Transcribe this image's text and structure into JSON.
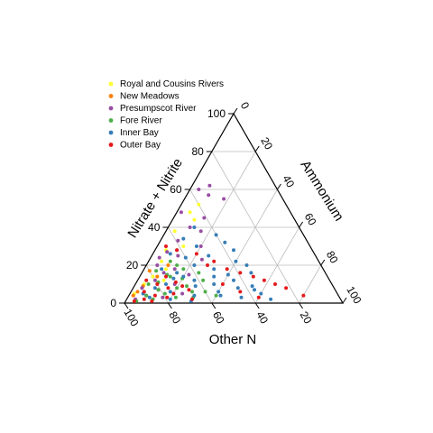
{
  "chart_data": {
    "type": "scatter",
    "subtype": "ternary",
    "axes": {
      "left": {
        "label": "Nitrate + Nitrite",
        "ticks": [
          "0",
          "20",
          "40",
          "60",
          "80",
          "100"
        ]
      },
      "right": {
        "label": "Ammonium",
        "ticks": [
          "0",
          "20",
          "40",
          "60",
          "80",
          "100"
        ]
      },
      "bottom": {
        "label": "Other N",
        "ticks": [
          "100",
          "80",
          "60",
          "40",
          "20"
        ]
      }
    },
    "range": [
      0,
      100
    ],
    "grid": true,
    "legend": {
      "position": "top-left",
      "entries": [
        {
          "name": "Royal and Cousins Rivers",
          "color": "#FFFF33"
        },
        {
          "name": "New Meadows",
          "color": "#FF7F00"
        },
        {
          "name": "Presumpscot River",
          "color": "#984EA3"
        },
        {
          "name": "Fore River",
          "color": "#4DAF4A"
        },
        {
          "name": "Inner Bay",
          "color": "#377EB8"
        },
        {
          "name": "Outer Bay",
          "color": "#E41A1C"
        }
      ]
    },
    "series": [
      {
        "name": "Royal and Cousins Rivers",
        "color": "#FFFF33",
        "points": [
          [
            52,
            8
          ],
          [
            48,
            6
          ],
          [
            44,
            10
          ],
          [
            38,
            4
          ],
          [
            28,
            5
          ],
          [
            22,
            6
          ],
          [
            18,
            10
          ],
          [
            14,
            6
          ],
          [
            10,
            4
          ],
          [
            5,
            2
          ],
          [
            12,
            12
          ],
          [
            30,
            12
          ]
        ]
      },
      {
        "name": "New Meadows",
        "color": "#FF7F00",
        "points": [
          [
            17,
            3
          ],
          [
            9,
            4
          ],
          [
            6,
            3
          ],
          [
            14,
            8
          ],
          [
            4,
            2
          ],
          [
            20,
            10
          ]
        ]
      },
      {
        "name": "Presumpscot River",
        "color": "#984EA3",
        "points": [
          [
            62,
            8
          ],
          [
            60,
            4
          ],
          [
            57,
            10
          ],
          [
            55,
            18
          ],
          [
            48,
            2
          ],
          [
            45,
            14
          ],
          [
            40,
            10
          ],
          [
            38,
            16
          ],
          [
            33,
            8
          ],
          [
            30,
            20
          ],
          [
            27,
            6
          ],
          [
            25,
            12
          ],
          [
            23,
            24
          ],
          [
            20,
            5
          ],
          [
            18,
            14
          ],
          [
            15,
            22
          ],
          [
            12,
            8
          ],
          [
            10,
            18
          ],
          [
            8,
            4
          ],
          [
            7,
            12
          ],
          [
            5,
            24
          ],
          [
            4,
            8
          ],
          [
            3,
            16
          ],
          [
            2,
            4
          ],
          [
            24,
            4
          ],
          [
            28,
            10
          ],
          [
            16,
            10
          ]
        ]
      },
      {
        "name": "Fore River",
        "color": "#4DAF4A",
        "points": [
          [
            22,
            10
          ],
          [
            18,
            18
          ],
          [
            16,
            26
          ],
          [
            14,
            14
          ],
          [
            12,
            30
          ],
          [
            10,
            6
          ],
          [
            8,
            20
          ],
          [
            7,
            12
          ],
          [
            6,
            28
          ],
          [
            5,
            16
          ],
          [
            4,
            8
          ],
          [
            3,
            22
          ],
          [
            2,
            12
          ],
          [
            1,
            5
          ],
          [
            11,
            10
          ],
          [
            13,
            20
          ],
          [
            15,
            12
          ],
          [
            9,
            24
          ],
          [
            20,
            14
          ],
          [
            17,
            6
          ],
          [
            6,
            34
          ],
          [
            4,
            40
          ],
          [
            3,
            30
          ]
        ]
      },
      {
        "name": "Inner Bay",
        "color": "#377EB8",
        "points": [
          [
            40,
            12
          ],
          [
            36,
            24
          ],
          [
            32,
            30
          ],
          [
            28,
            36
          ],
          [
            25,
            26
          ],
          [
            22,
            40
          ],
          [
            20,
            46
          ],
          [
            18,
            32
          ],
          [
            16,
            50
          ],
          [
            14,
            20
          ],
          [
            12,
            44
          ],
          [
            10,
            36
          ],
          [
            9,
            28
          ],
          [
            8,
            48
          ],
          [
            7,
            56
          ],
          [
            6,
            18
          ],
          [
            5,
            60
          ],
          [
            4,
            42
          ],
          [
            3,
            52
          ],
          [
            2,
            66
          ],
          [
            1,
            30
          ],
          [
            8,
            10
          ],
          [
            10,
            14
          ],
          [
            12,
            26
          ],
          [
            14,
            34
          ],
          [
            16,
            16
          ],
          [
            18,
            8
          ],
          [
            20,
            22
          ],
          [
            24,
            16
          ],
          [
            26,
            8
          ],
          [
            30,
            18
          ],
          [
            34,
            10
          ],
          [
            15,
            40
          ],
          [
            9,
            54
          ],
          [
            6,
            40
          ],
          [
            3,
            10
          ],
          [
            5,
            6
          ],
          [
            2,
            20
          ],
          [
            4,
            30
          ],
          [
            13,
            16
          ]
        ]
      },
      {
        "name": "Outer Bay",
        "color": "#E41A1C",
        "points": [
          [
            4,
            80
          ],
          [
            8,
            70
          ],
          [
            10,
            64
          ],
          [
            12,
            58
          ],
          [
            14,
            52
          ],
          [
            16,
            45
          ],
          [
            18,
            38
          ],
          [
            22,
            30
          ],
          [
            26,
            20
          ],
          [
            28,
            10
          ],
          [
            30,
            4
          ],
          [
            20,
            28
          ],
          [
            10,
            40
          ],
          [
            6,
            50
          ],
          [
            3,
            60
          ],
          [
            2,
            8
          ],
          [
            1,
            4
          ],
          [
            4,
            12
          ],
          [
            6,
            6
          ],
          [
            8,
            16
          ],
          [
            10,
            10
          ],
          [
            12,
            4
          ],
          [
            14,
            12
          ],
          [
            2,
            30
          ],
          [
            5,
            20
          ],
          [
            7,
            26
          ],
          [
            9,
            22
          ],
          [
            3,
            18
          ],
          [
            1,
            12
          ],
          [
            11,
            18
          ]
        ]
      }
    ]
  }
}
